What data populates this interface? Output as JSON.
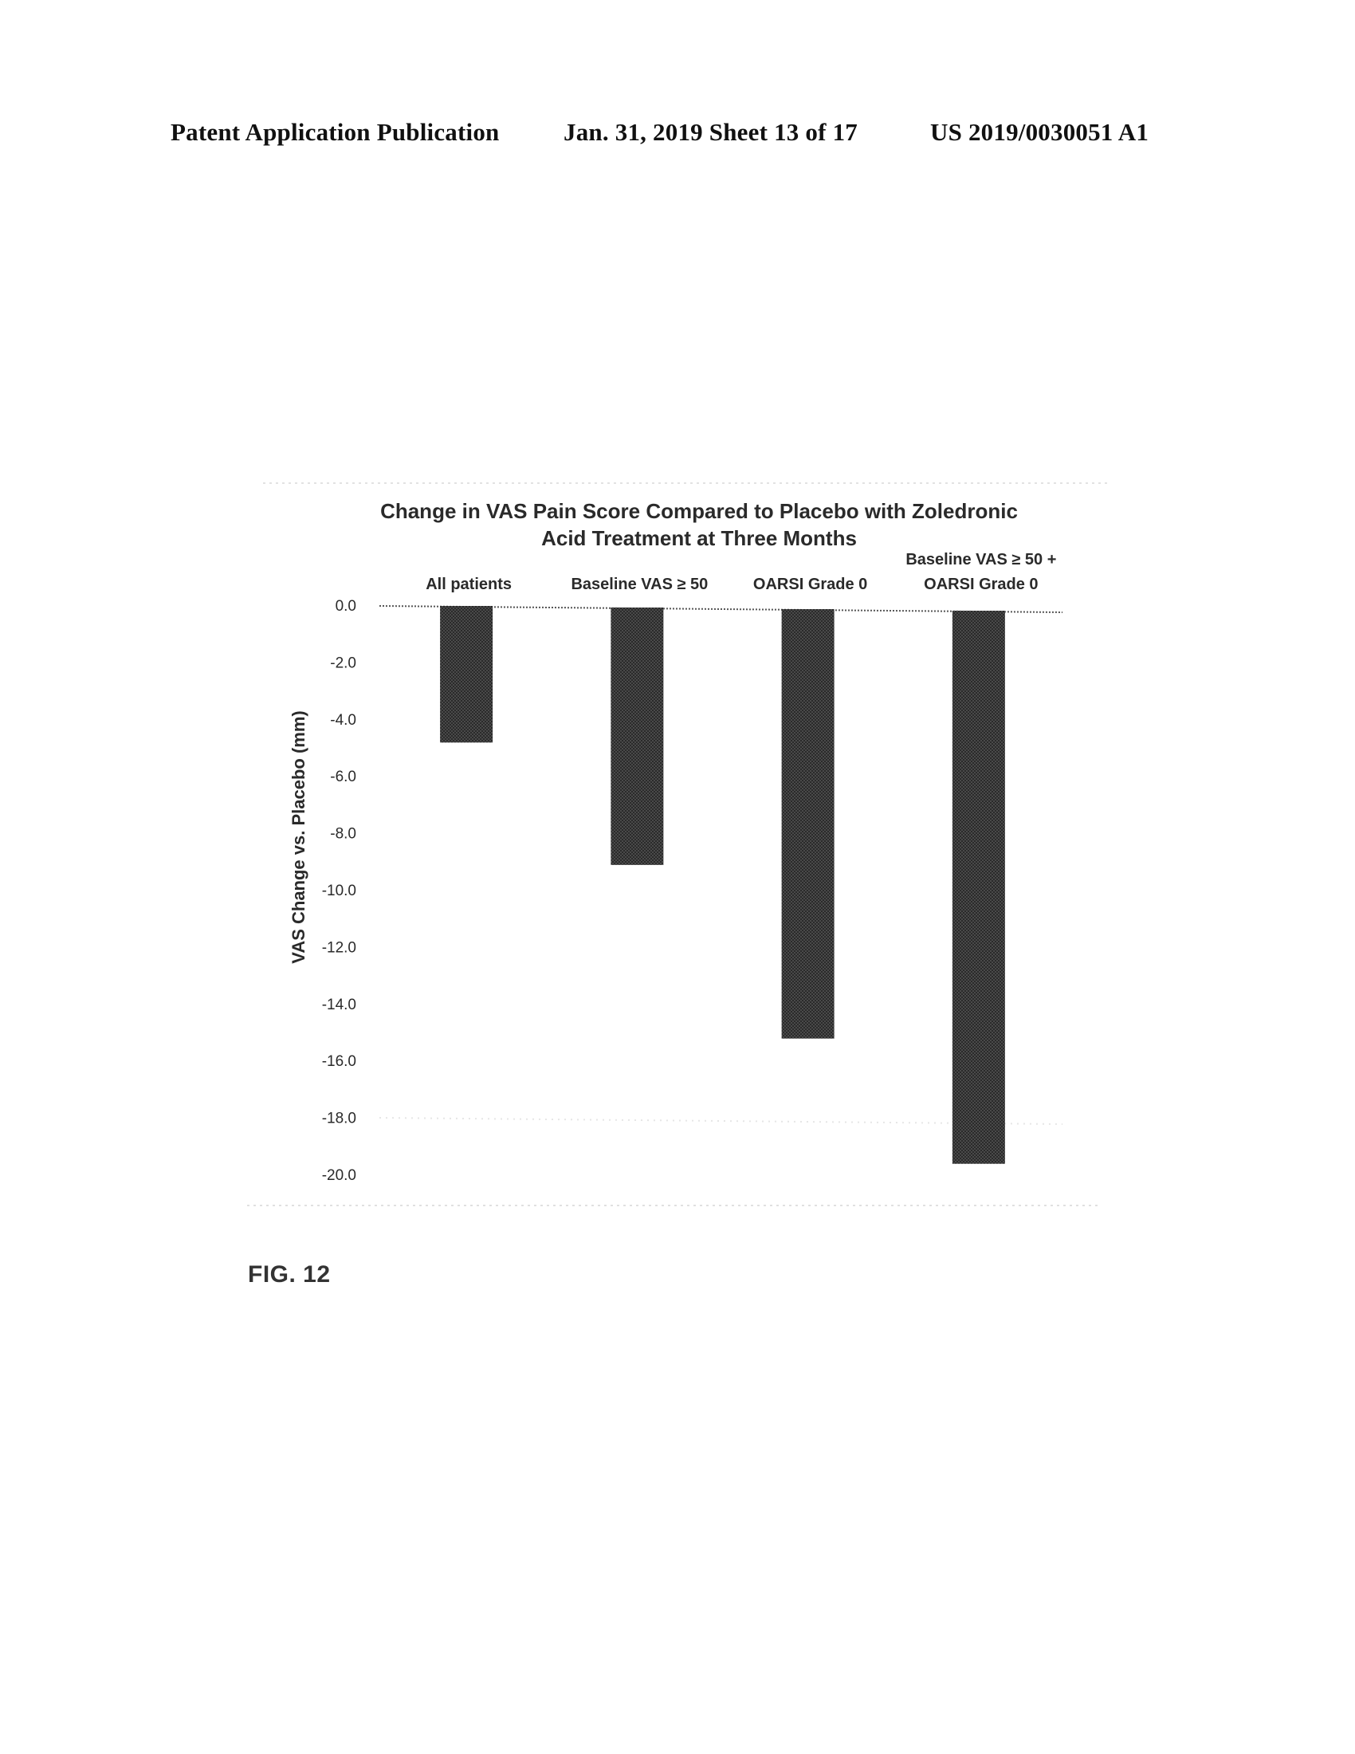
{
  "header": {
    "left": "Patent Application Publication",
    "middle": "Jan. 31, 2019  Sheet 13 of 17",
    "right": "US 2019/0030051 A1"
  },
  "figure_label": "FIG. 12",
  "chart_data": {
    "type": "bar",
    "title_lines": [
      "Change in VAS Pain Score Compared to Placebo with Zoledronic",
      "Acid Treatment at Three Months"
    ],
    "categories": [
      [
        "All patients"
      ],
      [
        "Baseline VAS ≥ 50"
      ],
      [
        "OARSI Grade 0"
      ],
      [
        "Baseline VAS ≥ 50 +",
        "OARSI Grade 0"
      ]
    ],
    "values": [
      -4.8,
      -9.1,
      -15.2,
      -19.6
    ],
    "ylabel": "VAS Change vs. Placebo (mm)",
    "xlabel": "",
    "ylim": [
      -20,
      0
    ],
    "yticks": [
      "0.0",
      "-2.0",
      "-4.0",
      "-6.0",
      "-8.0",
      "-10.0",
      "-12.0",
      "-14.0",
      "-16.0",
      "-18.0",
      "-20.0"
    ],
    "ytick_values": [
      0,
      -2,
      -4,
      -6,
      -8,
      -10,
      -12,
      -14,
      -16,
      -18,
      -20
    ],
    "category_labels_position": "top",
    "bar_color": "#3a3a3a",
    "grid": false
  }
}
